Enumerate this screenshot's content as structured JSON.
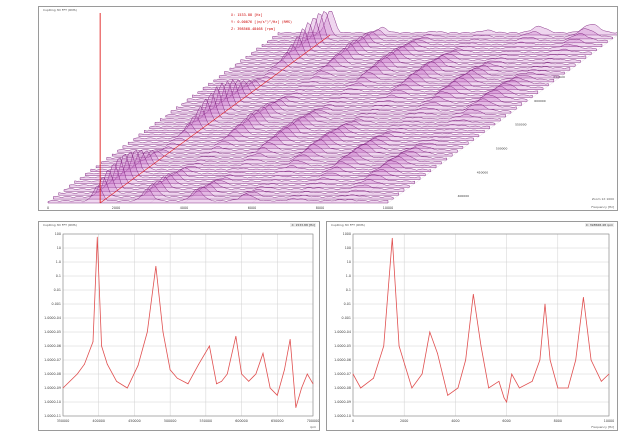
{
  "colors": {
    "waterfall_stroke": "#7a1e7a",
    "waterfall_fill": "#c46ac4",
    "trace": "#e05050",
    "cursor": "#e02020",
    "grid": "#d0d0d0"
  },
  "top_panel": {
    "title": "CupRing 3D FFT (RMS)",
    "cursor_readout": [
      "X: 1533.88 [Hz]",
      "Y: 0.00076 [(m/s²)²/Hz] (RMS)",
      "Z: 398568.48468 [rpm]"
    ],
    "side_info": "Zoom 1X 1000",
    "footer": "Frequency [Hz]"
  },
  "bottom_left": {
    "title": "CupRing 3D FFT (RMS)",
    "readout": "X: 1533.88 [Hz]",
    "footer": "rpm"
  },
  "bottom_right": {
    "title": "CupRing 3D FFT (RMS)",
    "readout": "X: 398568.48 rpm",
    "footer": "Frequency [Hz]"
  },
  "chart_data": [
    {
      "type": "area",
      "title": "CupRing 3D FFT (RMS)",
      "xlabel": "Frequency [Hz]",
      "x_tick_labels": [
        "0",
        "2000",
        "4000",
        "6000",
        "8000",
        "10000"
      ],
      "depth_tick_labels": [
        "400000",
        "450000",
        "500000",
        "550000",
        "600000",
        "650000"
      ],
      "cursor": {
        "frequency_hz": 1533.88,
        "rpm": 398568.48468
      },
      "slice_count": 44,
      "peak_frequencies_hz": [
        1500,
        3000,
        4500,
        6000,
        7500,
        9000
      ]
    },
    {
      "type": "line",
      "title": "CupRing 3D FFT (RMS)",
      "xlabel": "rpm",
      "ylabel": "",
      "y_scale": "log",
      "x_tick_labels": [
        "350000",
        "400000",
        "450000",
        "500000",
        "550000",
        "600000",
        "650000",
        "700000"
      ],
      "y_tick_labels": [
        "100",
        "10",
        "1.0",
        "0.1",
        "0.01",
        "0.001",
        "1.0000-04",
        "1.0000-05",
        "1.0000-06",
        "1.0000-07",
        "1.0000-08",
        "1.0000-09",
        "1.0000-10",
        "1.0000-11"
      ],
      "x": [
        350000,
        370000,
        380000,
        392000,
        398000,
        404000,
        412000,
        425000,
        440000,
        455000,
        468000,
        480000,
        490000,
        500000,
        510000,
        525000,
        540000,
        555000,
        565000,
        572000,
        580000,
        592000,
        600000,
        610000,
        620000,
        630000,
        640000,
        650000,
        660000,
        668000,
        676000,
        684000,
        692000,
        700000
      ],
      "y": [
        1e-09,
        1e-08,
        5e-08,
        2e-06,
        60,
        1e-06,
        5e-08,
        3e-09,
        1e-09,
        4e-08,
        1e-05,
        0.5,
        1e-05,
        2e-08,
        5e-09,
        2e-09,
        5e-08,
        1e-06,
        2e-09,
        3e-09,
        1e-08,
        5e-06,
        1e-08,
        3e-09,
        1e-08,
        3e-07,
        1e-09,
        3e-10,
        2e-08,
        3e-06,
        4e-11,
        1e-09,
        1e-08,
        2e-09
      ]
    },
    {
      "type": "line",
      "title": "CupRing 3D FFT (RMS)",
      "xlabel": "Frequency [Hz]",
      "ylabel": "",
      "y_scale": "log",
      "x_tick_labels": [
        "0",
        "2000",
        "4000",
        "6000",
        "8000",
        "10000"
      ],
      "y_tick_labels": [
        "1000",
        "100",
        "10",
        "1.0",
        "0.1",
        "0.01",
        "0.001",
        "1.0000-04",
        "1.0000-05",
        "1.0000-06",
        "1.0000-07",
        "1.0000-08",
        "1.0000-09",
        "1.0000-10"
      ],
      "x": [
        0,
        300,
        800,
        1200,
        1534,
        1800,
        2300,
        2700,
        3000,
        3300,
        3700,
        4100,
        4400,
        4700,
        5000,
        5300,
        5700,
        5900,
        6000,
        6200,
        6500,
        7000,
        7300,
        7500,
        7700,
        8000,
        8400,
        8700,
        9000,
        9300,
        9700,
        10000
      ],
      "y": [
        1e-07,
        1e-08,
        5e-08,
        1e-05,
        500,
        1e-05,
        1e-08,
        1e-07,
        0.0001,
        3e-06,
        3e-09,
        1e-08,
        1e-06,
        0.05,
        1e-05,
        1e-08,
        3e-08,
        2e-09,
        1e-09,
        1e-07,
        1e-08,
        3e-08,
        1e-06,
        0.01,
        1e-06,
        1e-08,
        1e-08,
        1e-06,
        0.03,
        1e-06,
        3e-08,
        1e-07
      ]
    }
  ]
}
